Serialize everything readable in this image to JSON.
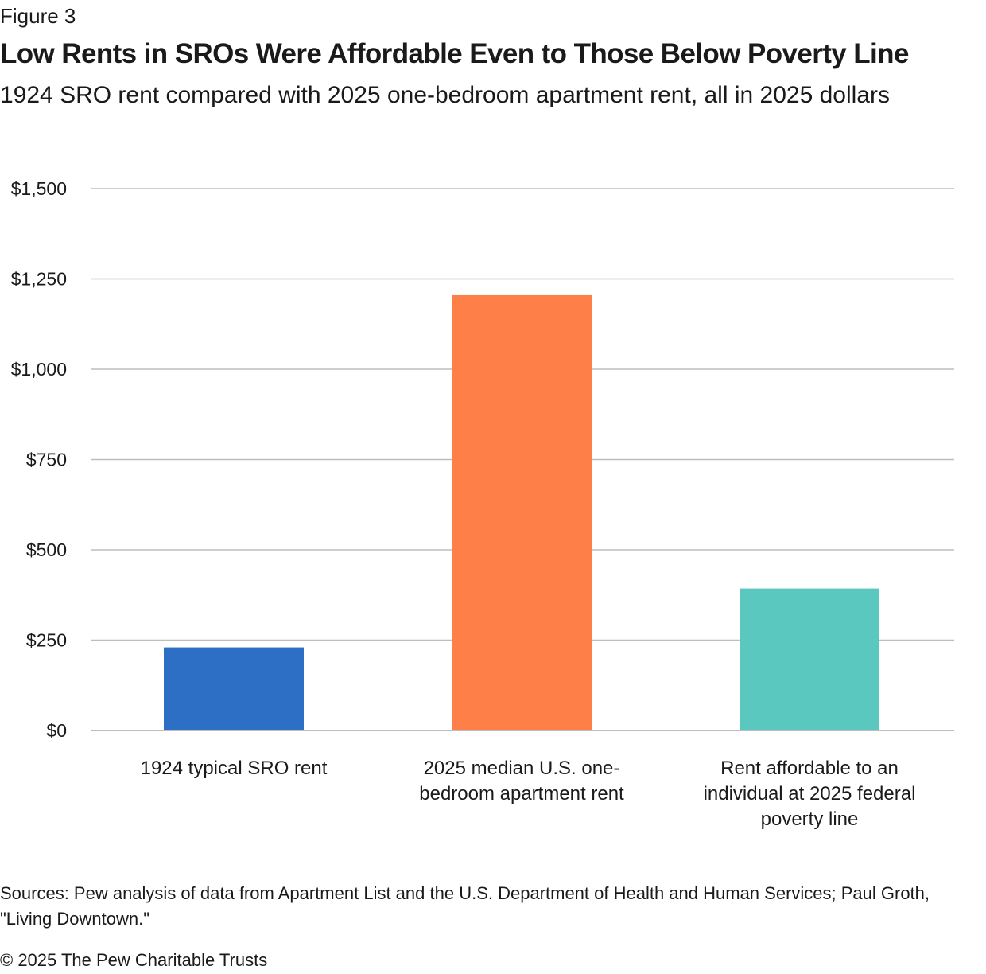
{
  "figure_label": "Figure 3",
  "chart_data": {
    "type": "bar",
    "title": "Low Rents in SROs Were Affordable Even to Those Below Poverty Line",
    "subtitle": "1924 SRO rent compared with 2025 one-bedroom apartment rent, all in 2025 dollars",
    "categories": [
      [
        "1924 typical SRO rent"
      ],
      [
        "2025 median U.S. one-",
        "bedroom apartment rent"
      ],
      [
        "Rent affordable to an",
        "individual at 2025 federal",
        "poverty line"
      ]
    ],
    "values": [
      230,
      1205,
      393
    ],
    "colors": [
      "#2c6fc4",
      "#ff7f48",
      "#5bc8bf"
    ],
    "ylim": [
      0,
      1500
    ],
    "yticks": [
      0,
      250,
      500,
      750,
      1000,
      1250,
      1500
    ],
    "ytick_labels": [
      "$0",
      "$250",
      "$500",
      "$750",
      "$1,000",
      "$1,250",
      "$1,500"
    ],
    "xlabel": "",
    "ylabel": "",
    "grid": true
  },
  "sources": "Sources: Pew analysis of data from Apartment List and the U.S. Department of Health and Human Services; Paul Groth, \"Living Downtown.\"",
  "copyright": "© 2025 The Pew Charitable Trusts"
}
